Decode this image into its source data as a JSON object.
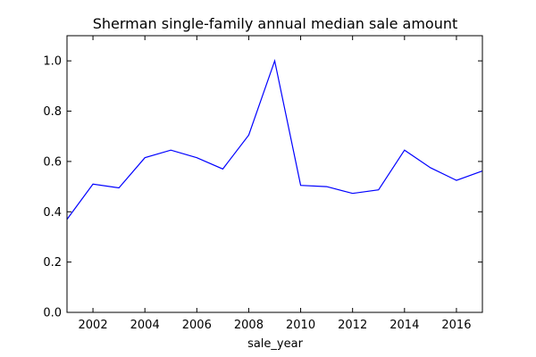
{
  "chart_data": {
    "type": "line",
    "title": "Sherman single-family annual median sale amount",
    "xlabel": "sale_year",
    "ylabel": "",
    "xlim": [
      2001,
      2017
    ],
    "ylim": [
      0.0,
      1.1
    ],
    "x_ticks": [
      2002,
      2004,
      2006,
      2008,
      2010,
      2012,
      2014,
      2016
    ],
    "y_ticks": [
      0.0,
      0.2,
      0.4,
      0.6,
      0.8,
      1.0
    ],
    "y_tick_labels": [
      "0.0",
      "0.2",
      "0.4",
      "0.6",
      "0.8",
      "1.0"
    ],
    "grid": false,
    "series": [
      {
        "color": "#0000ff",
        "x": [
          2001,
          2002,
          2003,
          2004,
          2005,
          2006,
          2007,
          2008,
          2009,
          2010,
          2011,
          2012,
          2013,
          2014,
          2015,
          2016,
          2017
        ],
        "values": [
          0.37,
          0.51,
          0.495,
          0.615,
          0.645,
          0.615,
          0.57,
          0.705,
          1.0,
          0.505,
          0.5,
          0.473,
          0.487,
          0.645,
          0.575,
          0.525,
          0.562
        ]
      }
    ]
  }
}
